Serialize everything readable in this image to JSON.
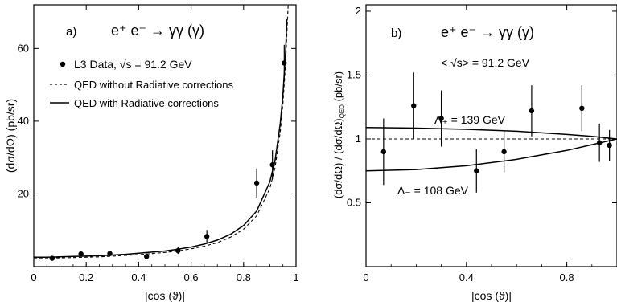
{
  "chart_data": [
    {
      "type": "scatter",
      "panel_label": "a)",
      "title": "e⁺ e⁻ → γγ (γ)",
      "xlabel": "|cos (ϑ)|",
      "ylabel": "(dσ/dΩ) (pb/sr)",
      "xlim": [
        0,
        1
      ],
      "ylim": [
        0,
        72
      ],
      "xticks": [
        {
          "v": 0,
          "t": "0"
        },
        {
          "v": 0.2,
          "t": "0.2"
        },
        {
          "v": 0.4,
          "t": "0.4"
        },
        {
          "v": 0.6,
          "t": "0.6"
        },
        {
          "v": 0.8,
          "t": "0.8"
        },
        {
          "v": 1,
          "t": "1"
        }
      ],
      "yticks": [
        {
          "v": 20,
          "t": "20"
        },
        {
          "v": 40,
          "t": "40"
        },
        {
          "v": 60,
          "t": "60"
        }
      ],
      "legend_position": "top-left",
      "legend": [
        {
          "text": "L3 Data, √s = 91.2 GeV",
          "style": "marker"
        },
        {
          "text": "QED without Radiative corrections",
          "style": "dashed"
        },
        {
          "text": "QED with Radiative corrections",
          "style": "solid"
        }
      ],
      "series": [
        {
          "style": "marker",
          "x": [
            0.07,
            0.18,
            0.29,
            0.43,
            0.55,
            0.66,
            0.85,
            0.91,
            0.955
          ],
          "y": [
            2.3,
            3.5,
            3.6,
            2.8,
            4.4,
            8.3,
            23.0,
            28.0,
            56.0
          ],
          "err": [
            0.5,
            0.7,
            0.7,
            0.6,
            0.9,
            1.8,
            4.0,
            4.0,
            5.0
          ]
        },
        {
          "style": "solid",
          "x": [
            0,
            0.05,
            0.1,
            0.15,
            0.2,
            0.25,
            0.3,
            0.35,
            0.4,
            0.45,
            0.5,
            0.55,
            0.6,
            0.65,
            0.7,
            0.75,
            0.8,
            0.85,
            0.9,
            0.92,
            0.94,
            0.95,
            0.96,
            0.965
          ],
          "y": [
            2.6,
            2.6,
            2.7,
            2.8,
            2.9,
            3.0,
            3.2,
            3.4,
            3.7,
            4.0,
            4.3,
            4.8,
            5.4,
            6.2,
            7.3,
            8.9,
            11.3,
            15.3,
            23.3,
            29.2,
            39.4,
            47.3,
            59.0,
            68.0
          ]
        },
        {
          "style": "dashed",
          "x": [
            0,
            0.05,
            0.1,
            0.15,
            0.2,
            0.25,
            0.3,
            0.35,
            0.4,
            0.45,
            0.5,
            0.55,
            0.6,
            0.65,
            0.7,
            0.75,
            0.8,
            0.85,
            0.9,
            0.92,
            0.94,
            0.95,
            0.96,
            0.97
          ],
          "y": [
            2.4,
            2.4,
            2.4,
            2.5,
            2.6,
            2.7,
            2.9,
            3.1,
            3.3,
            3.6,
            3.9,
            4.3,
            4.9,
            5.6,
            6.6,
            8.1,
            10.3,
            14.0,
            21.5,
            27.2,
            37.1,
            44.8,
            55.9,
            72.0
          ]
        }
      ]
    },
    {
      "type": "scatter",
      "panel_label": "b)",
      "title": "e⁺ e⁻ → γγ (γ)",
      "subtitle": "< √s> = 91.2 GeV",
      "xlabel": "|cos (ϑ)|",
      "ylabel": "(dσ/dΩ) / (dσ/dΩ)QED (pb/sr)",
      "xlim": [
        0,
        1
      ],
      "ylim": [
        0,
        2.05
      ],
      "xticks": [
        {
          "v": 0,
          "t": "0"
        },
        {
          "v": 0.4,
          "t": "0.4"
        },
        {
          "v": 0.8,
          "t": "0.8"
        }
      ],
      "yticks": [
        {
          "v": 0.5,
          "t": "0.5"
        },
        {
          "v": 1,
          "t": "1"
        },
        {
          "v": 1.5,
          "t": "1.5"
        },
        {
          "v": 2,
          "t": "2"
        }
      ],
      "annotations": [
        "Λ₊ = 139 GeV",
        "Λ₋ = 108 GeV"
      ],
      "series": [
        {
          "style": "marker",
          "x": [
            0.07,
            0.19,
            0.3,
            0.44,
            0.55,
            0.66,
            0.86,
            0.93,
            0.97
          ],
          "y": [
            0.9,
            1.26,
            1.16,
            0.75,
            0.9,
            1.22,
            1.24,
            0.97,
            0.95
          ],
          "err": [
            0.26,
            0.26,
            0.22,
            0.17,
            0.16,
            0.2,
            0.18,
            0.15,
            0.12
          ]
        },
        {
          "style": "solid",
          "x": [
            0,
            0.2,
            0.4,
            0.6,
            0.8,
            0.9,
            1.0
          ],
          "y": [
            1.09,
            1.085,
            1.075,
            1.06,
            1.035,
            1.02,
            1.0
          ]
        },
        {
          "style": "solid",
          "x": [
            0,
            0.2,
            0.4,
            0.6,
            0.8,
            0.9,
            1.0
          ],
          "y": [
            0.75,
            0.76,
            0.79,
            0.84,
            0.91,
            0.955,
            1.0
          ]
        },
        {
          "style": "dashed",
          "x": [
            0,
            1
          ],
          "y": [
            1,
            1
          ]
        }
      ]
    }
  ]
}
